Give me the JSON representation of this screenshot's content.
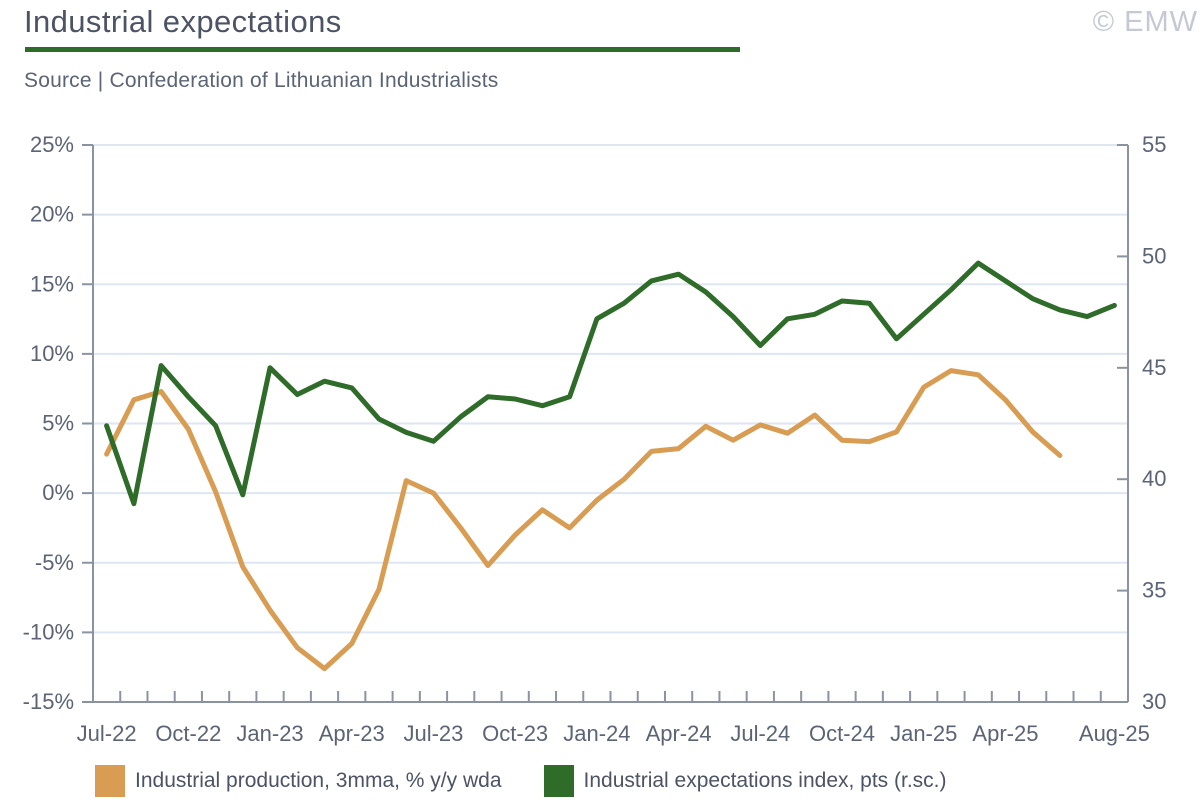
{
  "header": {
    "title": "Industrial expectations",
    "watermark": "© EMW",
    "source": "Source | Confederation of Lithuanian Industrialists"
  },
  "legend": {
    "production": {
      "label": "Industrial production, 3mma, % y/y wda",
      "color": "#d89c52"
    },
    "expectations": {
      "label": "Industrial expectations index, pts (r.sc.)",
      "color": "#2f6b29"
    }
  },
  "colors": {
    "accent_green": "#2e6b28",
    "line_orange": "#d89c52",
    "line_green": "#2f6b29",
    "grid": "#dde6f1",
    "axis": "#8a93a2",
    "axis_text": "#5b6475",
    "title_text": "#4b5364",
    "watermark_text": "#c4c9d4"
  },
  "chart_data": {
    "type": "line",
    "title": "Industrial expectations",
    "grid": true,
    "legend_position": "bottom",
    "categories": [
      "Jul-22",
      "Aug-22",
      "Sep-22",
      "Oct-22",
      "Nov-22",
      "Dec-22",
      "Jan-23",
      "Feb-23",
      "Mar-23",
      "Apr-23",
      "May-23",
      "Jun-23",
      "Jul-23",
      "Aug-23",
      "Sep-23",
      "Oct-23",
      "Nov-23",
      "Dec-23",
      "Jan-24",
      "Feb-24",
      "Mar-24",
      "Apr-24",
      "May-24",
      "Jun-24",
      "Jul-24",
      "Aug-24",
      "Sep-24",
      "Oct-24",
      "Nov-24",
      "Dec-24",
      "Jan-25",
      "Feb-25",
      "Mar-25",
      "Apr-25",
      "May-25",
      "Jun-25",
      "Jul-25",
      "Aug-25"
    ],
    "x_tick_labels": [
      "Jul-22",
      "Oct-22",
      "Jan-23",
      "Apr-23",
      "Jul-23",
      "Oct-23",
      "Jan-24",
      "Apr-24",
      "Jul-24",
      "Oct-24",
      "Jan-25",
      "Apr-25",
      "Aug-25"
    ],
    "x_tick_indices": [
      0,
      3,
      6,
      9,
      12,
      15,
      18,
      21,
      24,
      27,
      30,
      33,
      37
    ],
    "left_axis": {
      "min": -15,
      "max": 25,
      "tick_step": 5,
      "tick_labels": [
        "25%",
        "20%",
        "15%",
        "10%",
        "5%",
        "0%",
        "-5%",
        "-10%",
        "-15%"
      ],
      "tick_values": [
        25,
        20,
        15,
        10,
        5,
        0,
        -5,
        -10,
        -15
      ]
    },
    "right_axis": {
      "min": 30,
      "max": 55,
      "tick_step": 5,
      "tick_labels": [
        "55",
        "50",
        "45",
        "40",
        "35",
        "30"
      ],
      "tick_values": [
        55,
        50,
        45,
        40,
        35,
        30
      ]
    },
    "series": [
      {
        "name": "Industrial production, 3mma, % y/y wda",
        "axis": "left",
        "unit": "% y/y",
        "color": "#d89c52",
        "values": [
          2.8,
          6.7,
          7.3,
          4.6,
          0.1,
          -5.3,
          -8.4,
          -11.1,
          -12.6,
          -10.8,
          -6.9,
          0.9,
          0.0,
          -2.5,
          -5.2,
          -3.0,
          -1.2,
          -2.5,
          -0.5,
          1.0,
          3.0,
          3.2,
          4.8,
          3.8,
          4.9,
          4.3,
          5.6,
          3.8,
          3.7,
          4.4,
          7.6,
          8.8,
          8.5,
          6.7,
          4.4,
          2.7,
          null,
          null
        ]
      },
      {
        "name": "Industrial expectations index, pts (r.sc.)",
        "axis": "right",
        "unit": "pts",
        "color": "#2f6b29",
        "values": [
          42.4,
          38.9,
          45.1,
          43.7,
          42.4,
          39.3,
          45.0,
          43.8,
          44.4,
          44.1,
          42.7,
          42.1,
          41.7,
          42.8,
          43.7,
          43.6,
          43.3,
          43.7,
          47.2,
          47.9,
          48.9,
          49.2,
          48.4,
          47.3,
          46.0,
          47.2,
          47.4,
          48.0,
          47.9,
          46.3,
          47.4,
          48.5,
          49.7,
          48.9,
          48.1,
          47.6,
          47.3,
          47.8
        ]
      }
    ]
  }
}
